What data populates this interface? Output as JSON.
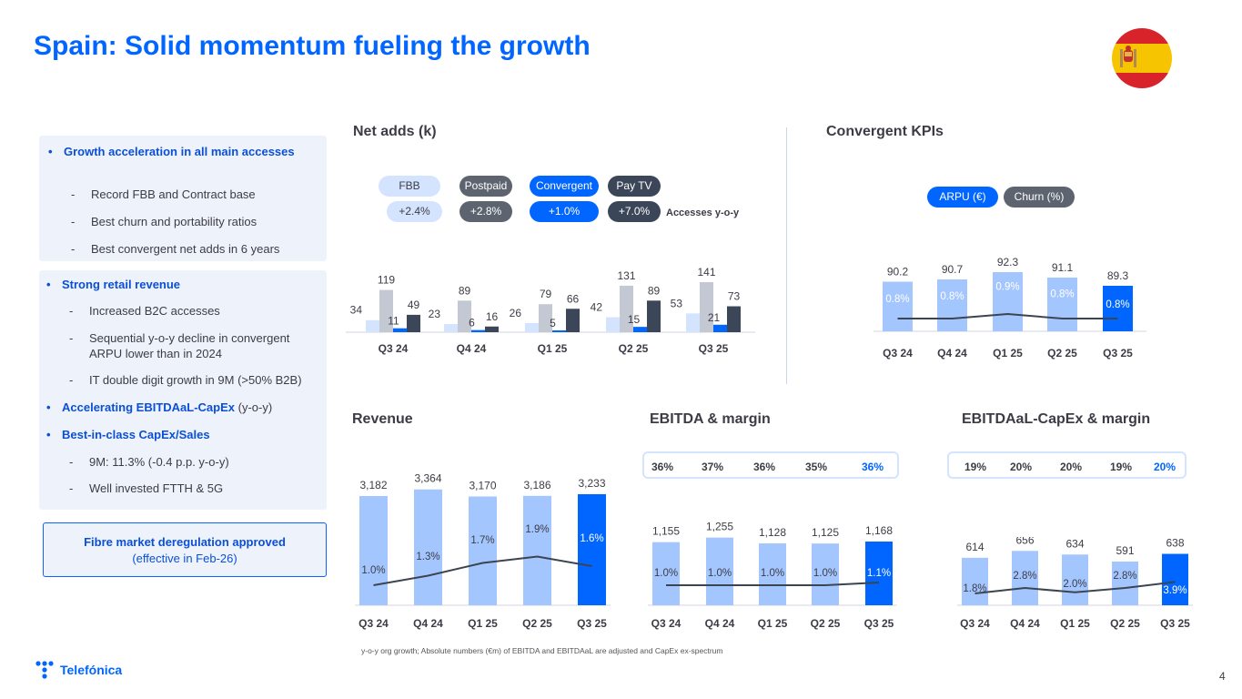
{
  "title": "Spain: Solid momentum fueling the growth",
  "colors": {
    "blue": "#0066ff",
    "light": "#a4c6ff",
    "grey": "#c4c8d2",
    "dark": "#3b4658",
    "pale": "#d4e4ff",
    "line": "#3c4450"
  },
  "box1": {
    "head": "Growth acceleration in all main accesses",
    "items": [
      "Record FBB and Contract base",
      "Best churn and portability ratios",
      "Best convergent net adds in 6 years"
    ]
  },
  "box2": {
    "retail": "Strong retail revenue",
    "retail_items": [
      "Increased B2C accesses",
      "Sequential y-o-y decline in convergent",
      "ARPU lower than in 2024",
      "IT double digit growth in 9M (>50% B2B)"
    ],
    "ebitda": "Accelerating EBITDAaL-CapEx",
    "ebitda_suffix": " (y-o-y)",
    "capex": "Best-in-class CapEx/Sales",
    "capex_items": [
      "9M: 11.3% (-0.4 p.p. y-o-y)",
      "Well invested FTTH & 5G"
    ]
  },
  "fibre": {
    "title": "Fibre market deregulation approved",
    "sub": "(effective in Feb-26)"
  },
  "net_adds": {
    "title": "Net adds (k)",
    "legend": [
      "FBB",
      "Postpaid",
      "Convergent",
      "Pay TV"
    ],
    "growth": [
      "+2.4%",
      "+2.8%",
      "+1.0%",
      "+7.0%"
    ],
    "growth_label": "Accesses y-o-y"
  },
  "kpis": {
    "title": "Convergent KPIs",
    "legend": [
      "ARPU (€)",
      "Churn (%)"
    ]
  },
  "revenue": {
    "title": "Revenue"
  },
  "ebitda": {
    "title": "EBITDA & margin",
    "margins": [
      "36%",
      "37%",
      "36%",
      "35%",
      "36%"
    ]
  },
  "ebitdaal": {
    "title": "EBITDAaL-CapEx & margin",
    "margins": [
      "19%",
      "20%",
      "20%",
      "19%",
      "20%"
    ]
  },
  "chart_data": [
    {
      "id": "net_adds",
      "type": "bar",
      "title": "Net adds (k)",
      "categories": [
        "Q3 24",
        "Q4 24",
        "Q1 25",
        "Q2 25",
        "Q3 25"
      ],
      "series": [
        {
          "name": "FBB",
          "values": [
            34,
            23,
            26,
            42,
            53
          ]
        },
        {
          "name": "Postpaid",
          "values": [
            119,
            89,
            79,
            131,
            141
          ]
        },
        {
          "name": "Convergent",
          "values": [
            11,
            6,
            5,
            15,
            21
          ]
        },
        {
          "name": "Pay TV",
          "values": [
            49,
            16,
            66,
            89,
            73
          ]
        }
      ]
    },
    {
      "id": "kpis",
      "type": "bar",
      "title": "Convergent KPIs",
      "categories": [
        "Q3 24",
        "Q4 24",
        "Q1 25",
        "Q2 25",
        "Q3 25"
      ],
      "series": [
        {
          "name": "ARPU (€)",
          "values": [
            90.2,
            90.7,
            92.3,
            91.1,
            89.3
          ],
          "labels": [
            "90.2",
            "90.7",
            "92.3",
            "91.1",
            "89.3"
          ]
        },
        {
          "name": "Churn (%)",
          "values": [
            0.8,
            0.8,
            0.9,
            0.8,
            0.8
          ],
          "labels": [
            "0.8%",
            "0.8%",
            "0.9%",
            "0.8%",
            "0.8%"
          ]
        }
      ]
    },
    {
      "id": "revenue",
      "type": "bar",
      "title": "Revenue",
      "categories": [
        "Q3 24",
        "Q4 24",
        "Q1 25",
        "Q2 25",
        "Q3 25"
      ],
      "series": [
        {
          "name": "Revenue (€m)",
          "values": [
            3182,
            3364,
            3170,
            3186,
            3233
          ],
          "labels": [
            "3,182",
            "3,364",
            "3,170",
            "3,186",
            "3,233"
          ]
        },
        {
          "name": "y-o-y growth",
          "values": [
            1.0,
            1.3,
            1.7,
            1.9,
            1.6
          ],
          "labels": [
            "1.0%",
            "1.3%",
            "1.7%",
            "1.9%",
            "1.6%"
          ]
        }
      ]
    },
    {
      "id": "ebitda",
      "type": "bar",
      "title": "EBITDA & margin",
      "categories": [
        "Q3 24",
        "Q4 24",
        "Q1 25",
        "Q2 25",
        "Q3 25"
      ],
      "series": [
        {
          "name": "EBITDA (€m)",
          "values": [
            1155,
            1255,
            1128,
            1125,
            1168
          ],
          "labels": [
            "1,155",
            "1,255",
            "1,128",
            "1,125",
            "1,168"
          ]
        },
        {
          "name": "y-o-y growth",
          "values": [
            1.0,
            1.0,
            1.0,
            1.0,
            1.1
          ],
          "labels": [
            "1.0%",
            "1.0%",
            "1.0%",
            "1.0%",
            "1.1%"
          ]
        }
      ]
    },
    {
      "id": "ebitdaal",
      "type": "bar",
      "title": "EBITDAaL-CapEx & margin",
      "categories": [
        "Q3 24",
        "Q4 24",
        "Q1 25",
        "Q2 25",
        "Q3 25"
      ],
      "series": [
        {
          "name": "EBITDAaL-CapEx (€m)",
          "values": [
            614,
            656,
            634,
            591,
            638
          ],
          "labels": [
            "614",
            "656",
            "634",
            "591",
            "638"
          ]
        },
        {
          "name": "y-o-y growth",
          "values": [
            1.8,
            2.8,
            2.0,
            2.8,
            3.9
          ],
          "labels": [
            "1.8%",
            "2.8%",
            "2.0%",
            "2.8%",
            "3.9%"
          ]
        }
      ]
    }
  ],
  "footnote": "y-o-y org growth; Absolute numbers (€m) of EBITDA and EBITDAaL are adjusted and CapEx ex-spectrum",
  "page_number": "4",
  "logo_text": "Telefónica"
}
